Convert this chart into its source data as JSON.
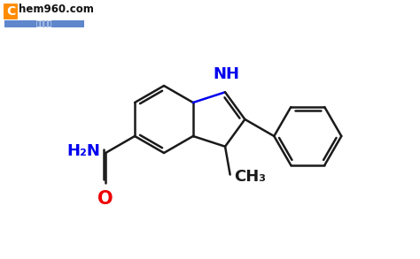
{
  "bg_color": "#ffffff",
  "line_color": "#1a1a1a",
  "blue_color": "#0000ee",
  "red_color": "#ee0000",
  "orange_color": "#ff8c00",
  "h2n_label": "H₂N",
  "nh_label": "NH",
  "o_label": "O",
  "ch3_label": "CH₃",
  "lw": 1.8,
  "S": 38
}
